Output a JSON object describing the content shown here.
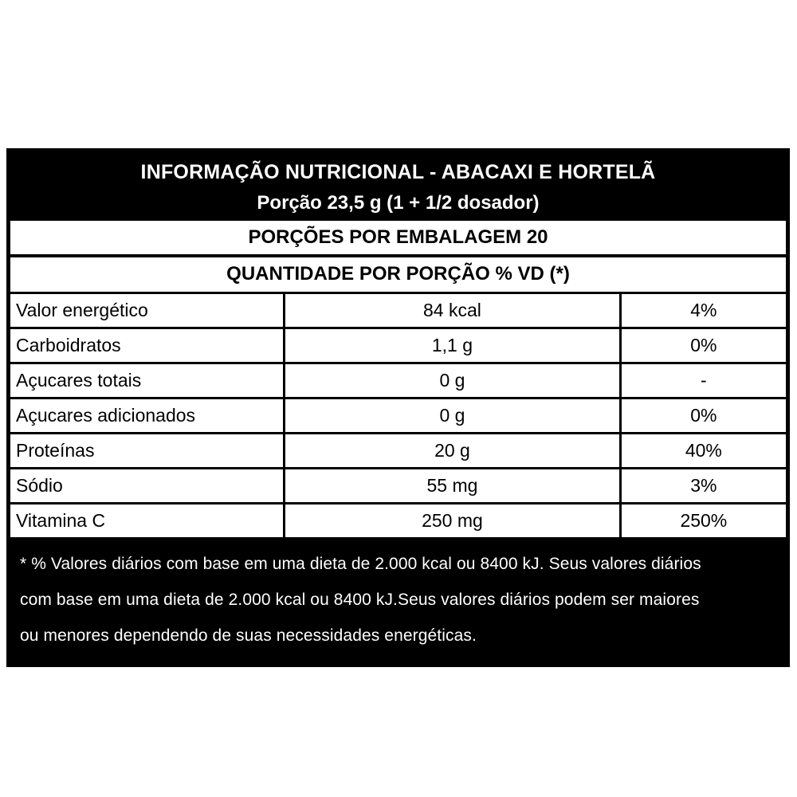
{
  "header": {
    "title": "INFORMAÇÃO NUTRICIONAL - ABACAXI E HORTELÃ",
    "portion_line": "Porção 23,5 g (1 + 1/2 dosador)"
  },
  "table": {
    "servings_per_package_label": "PORÇÕES POR EMBALAGEM 20",
    "quantity_header_label": "QUANTIDADE POR PORÇÃO % VD (*)",
    "rows": [
      {
        "nutrient": "Valor energético",
        "amount": "84 kcal",
        "dv": "4%"
      },
      {
        "nutrient": "Carboidratos",
        "amount": "1,1 g",
        "dv": "0%"
      },
      {
        "nutrient": "Açucares totais",
        "amount": "0 g",
        "dv": "-"
      },
      {
        "nutrient": "Açucares adicionados",
        "amount": "0 g",
        "dv": "0%"
      },
      {
        "nutrient": "Proteínas",
        "amount": "20 g",
        "dv": "40%"
      },
      {
        "nutrient": "Sódio",
        "amount": "55 mg",
        "dv": "3%"
      },
      {
        "nutrient": "Vitamina C",
        "amount": "250 mg",
        "dv": "250%"
      }
    ]
  },
  "footnote": {
    "lines": [
      "* % Valores diários com base em uma dieta de 2.000 kcal ou 8400 kJ. Seus valores diários",
      "com base em uma dieta de 2.000 kcal ou 8400 kJ.Seus valores diários podem ser maiores",
      "ou menores dependendo de suas necessidades energéticas."
    ]
  },
  "colors": {
    "page_background": "#ffffff",
    "table_border": "#000000",
    "header_background": "#000000",
    "header_text": "#ffffff",
    "body_text": "#000000"
  }
}
